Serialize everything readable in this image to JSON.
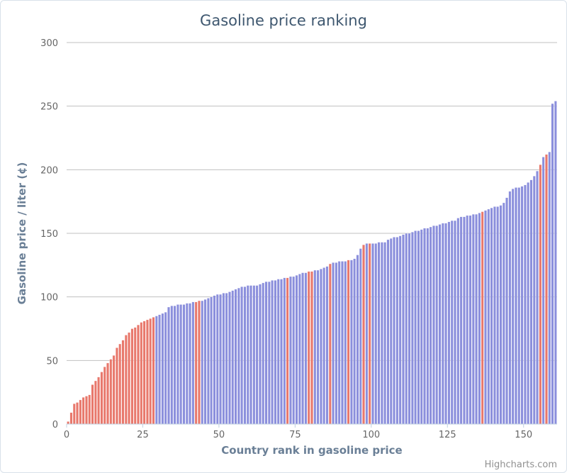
{
  "chart_data": {
    "type": "bar",
    "title": "Gasoline price ranking",
    "xlabel": "Country rank in gasoline price",
    "ylabel": "Gasoline price / liter (¢)",
    "credit": "Highcharts.com",
    "xlim": [
      0,
      161
    ],
    "ylim": [
      0,
      300
    ],
    "xticks": [
      0,
      25,
      50,
      75,
      100,
      125,
      150
    ],
    "yticks": [
      0,
      50,
      100,
      150,
      200,
      250,
      300
    ],
    "grid": true,
    "colors": {
      "default": "#8b8fdc",
      "highlight": "#e8786c",
      "title": "#3e576f",
      "axis_title": "#6a7f96",
      "grid": "#c0c0c0"
    },
    "highlight_ranks": [
      1,
      2,
      3,
      4,
      5,
      6,
      7,
      8,
      9,
      10,
      11,
      12,
      13,
      14,
      15,
      16,
      17,
      18,
      19,
      20,
      21,
      22,
      23,
      24,
      25,
      26,
      27,
      28,
      29,
      43,
      44,
      73,
      80,
      81,
      87,
      93,
      98,
      100,
      137,
      156,
      158
    ],
    "values": [
      2,
      9,
      16,
      17,
      19,
      21,
      22,
      23,
      31,
      34,
      37,
      41,
      45,
      48,
      51,
      54,
      60,
      63,
      66,
      70,
      72,
      75,
      76,
      78,
      80,
      81,
      82,
      83,
      84,
      85,
      86,
      87,
      88,
      92,
      93,
      93,
      94,
      94,
      94,
      95,
      95,
      96,
      96,
      97,
      97,
      98,
      99,
      100,
      101,
      102,
      102,
      103,
      103,
      104,
      105,
      106,
      107,
      108,
      108,
      109,
      109,
      109,
      109,
      110,
      111,
      112,
      112,
      113,
      113,
      114,
      114,
      115,
      115,
      116,
      116,
      117,
      118,
      119,
      119,
      120,
      120,
      121,
      121,
      122,
      123,
      124,
      126,
      127,
      127,
      128,
      128,
      128,
      129,
      129,
      130,
      133,
      138,
      141,
      142,
      142,
      142,
      142,
      143,
      143,
      143,
      145,
      146,
      147,
      147,
      148,
      149,
      150,
      150,
      151,
      152,
      152,
      153,
      154,
      154,
      155,
      156,
      156,
      157,
      158,
      158,
      159,
      160,
      160,
      162,
      163,
      163,
      164,
      164,
      165,
      165,
      166,
      167,
      168,
      169,
      170,
      171,
      171,
      172,
      174,
      178,
      183,
      185,
      186,
      186,
      187,
      188,
      190,
      192,
      195,
      199,
      204,
      210,
      212,
      214,
      252,
      254
    ]
  }
}
